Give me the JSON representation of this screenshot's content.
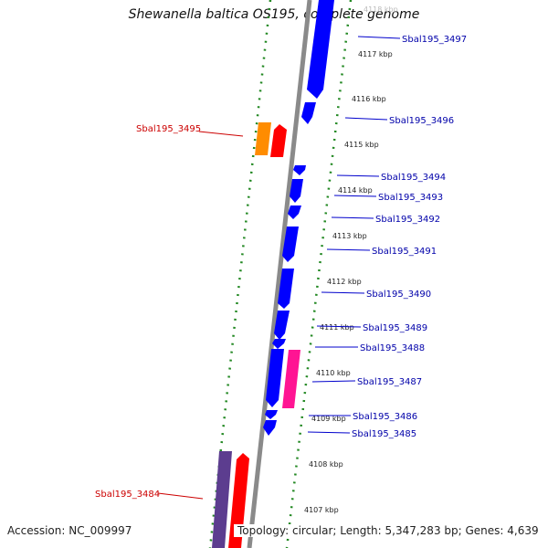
{
  "title": "Shewanella baltica OS195, complete genome",
  "footer": {
    "accession": "Accession: NC_009997",
    "summary": "Topology: circular; Length: 5,347,283 bp; Genes: 4,639"
  },
  "colors": {
    "forward_gene": "#0000ff",
    "reverse_gene_label": "#cc0000",
    "forward_gene_label": "#0000aa",
    "backbone": "#888888",
    "gc_ticks": "#228822",
    "orange_gene": "#ff8c00",
    "red_gene": "#ff0000",
    "pink_gene": "#ff1493",
    "purple_gene": "#5c3d8f"
  },
  "kbp_ticks": [
    "4118 kbp",
    "4117 kbp",
    "4116 kbp",
    "4115 kbp",
    "4114 kbp",
    "4113 kbp",
    "4112 kbp",
    "4111 kbp",
    "4110 kbp",
    "4109 kbp",
    "4108 kbp",
    "4107 kbp"
  ],
  "right_labels": [
    "Sbal195_3497",
    "Sbal195_3496",
    "Sbal195_3494",
    "Sbal195_3493",
    "Sbal195_3492",
    "Sbal195_3491",
    "Sbal195_3490",
    "Sbal195_3489",
    "Sbal195_3488",
    "Sbal195_3487",
    "Sbal195_3486",
    "Sbal195_3485"
  ],
  "left_labels": [
    "Sbal195_3495",
    "Sbal195_3484"
  ]
}
